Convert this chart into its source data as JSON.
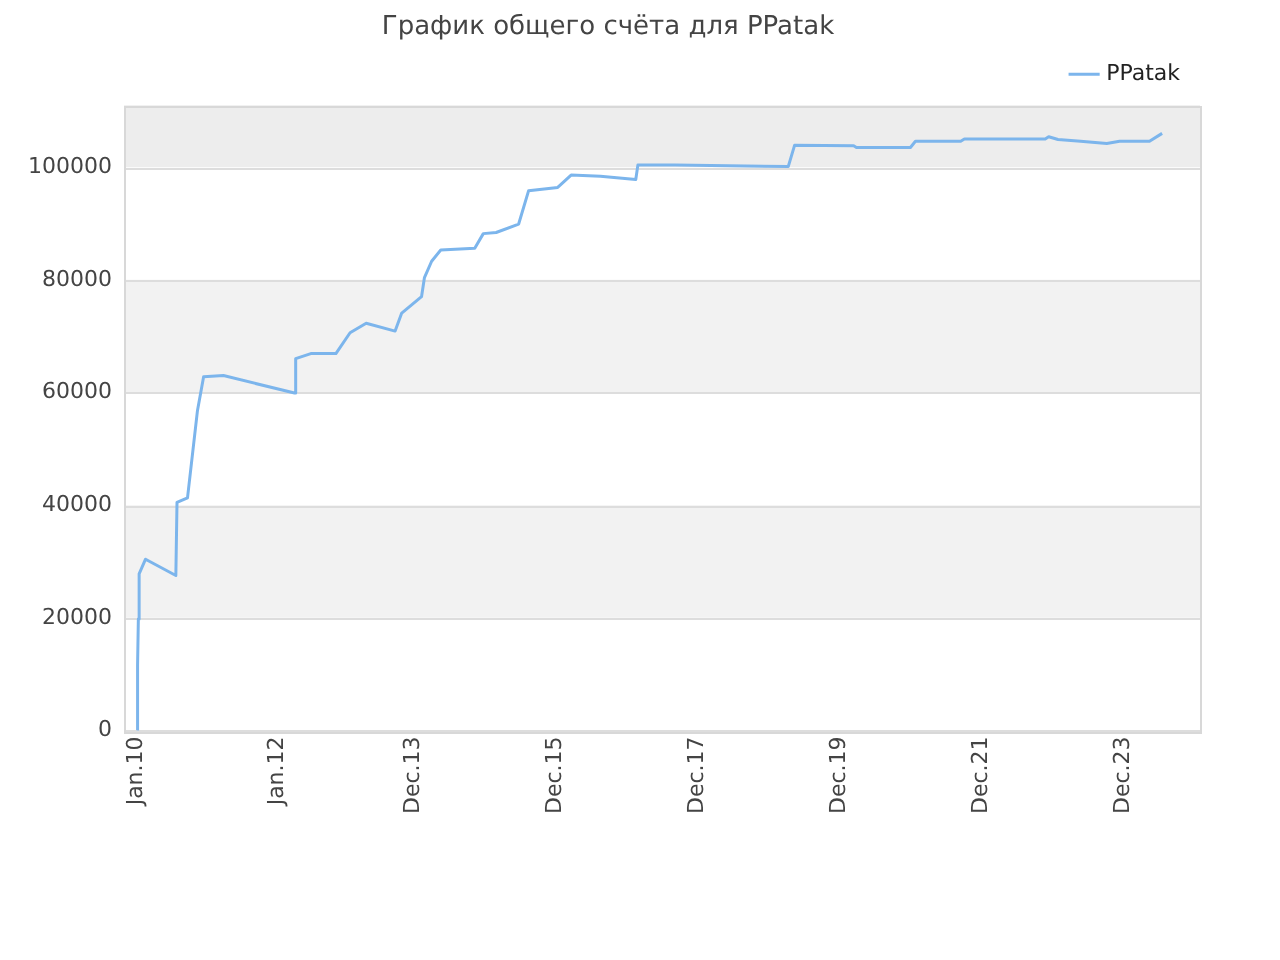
{
  "chart_data": {
    "type": "line",
    "title": "График общего счёта для PPatak",
    "x": [
      "2010-01-08",
      "2010-01-10",
      "2010-01-14",
      "2010-01-18",
      "2010-02-20",
      "2010-07-26",
      "2010-08-01",
      "2010-09-24",
      "2010-11-14",
      "2010-12-16",
      "2011-03-28",
      "2012-03-28",
      "2012-04-03",
      "2012-06-20",
      "2012-10-27",
      "2013-01-08",
      "2013-04-01",
      "2013-08-28",
      "2013-10-01",
      "2014-01-11",
      "2014-01-26",
      "2014-03-04",
      "2014-04-20",
      "2014-10-12",
      "2014-11-25",
      "2015-01-30",
      "2015-05-26",
      "2015-07-16",
      "2015-12-13",
      "2016-02-20",
      "2016-07-20",
      "2017-01-18",
      "2017-01-29",
      "2017-08-08",
      "2019-03-14",
      "2019-04-16",
      "2020-02-14",
      "2020-02-28",
      "2020-12-02",
      "2020-12-28",
      "2021-08-18",
      "2021-09-06",
      "2022-10-27",
      "2022-11-14",
      "2023-01-01",
      "2023-04-27",
      "2023-09-09",
      "2023-11-14",
      "2024-04-16",
      "2024-06-20"
    ],
    "series": [
      {
        "name": "PPatak",
        "color": "#7cb5ec",
        "values": [
          0,
          11600,
          19800,
          27800,
          30400,
          27500,
          40500,
          41300,
          56700,
          62800,
          63000,
          59900,
          66000,
          66900,
          66900,
          70600,
          72300,
          70900,
          74100,
          77000,
          80400,
          83300,
          85300,
          85600,
          88200,
          88400,
          89900,
          95800,
          96400,
          98600,
          98400,
          97800,
          100400,
          100400,
          100100,
          103900,
          103800,
          103500,
          103500,
          104600,
          104600,
          105000,
          105000,
          105400,
          104900,
          104600,
          104200,
          104600,
          104600,
          106000
        ]
      }
    ],
    "xlim": [
      "2009-11-01",
      "2025-01-01"
    ],
    "xticks": [
      {
        "value": "2010-01-01",
        "label": "Jan.10"
      },
      {
        "value": "2012-01-01",
        "label": "Jan.12"
      },
      {
        "value": "2013-12-01",
        "label": "Dec.13"
      },
      {
        "value": "2015-12-01",
        "label": "Dec.15"
      },
      {
        "value": "2017-12-01",
        "label": "Dec.17"
      },
      {
        "value": "2019-12-01",
        "label": "Dec.19"
      },
      {
        "value": "2021-12-01",
        "label": "Dec.21"
      },
      {
        "value": "2023-12-01",
        "label": "Dec.23"
      }
    ],
    "ylim": [
      0,
      111000
    ],
    "yticks": [
      0,
      20000,
      40000,
      60000,
      80000,
      100000
    ],
    "bands": [
      {
        "axis": "y",
        "from": 20000,
        "to": 40000,
        "color": "#f2f2f2"
      },
      {
        "axis": "y",
        "from": 60000,
        "to": 80000,
        "color": "#f2f2f2"
      },
      {
        "axis": "y",
        "from": 100000,
        "to": 111000,
        "color": "#ededed"
      }
    ],
    "grid": "y",
    "legend": "top right",
    "marker": "none",
    "line_style": "solid"
  }
}
